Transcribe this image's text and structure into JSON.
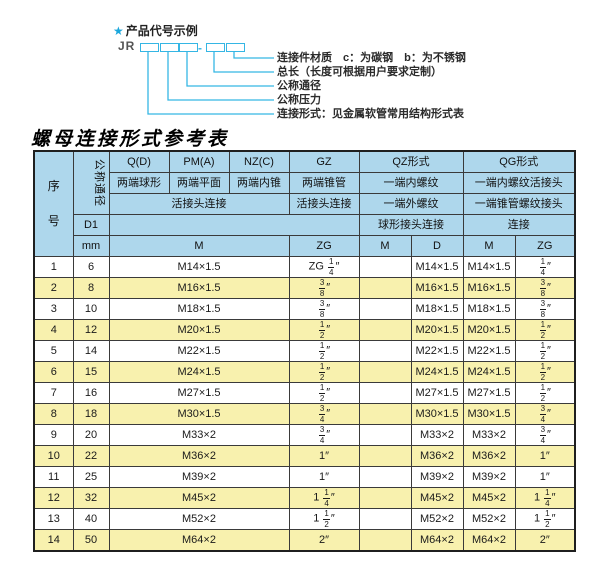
{
  "diagram": {
    "star": "★",
    "title": "产品代号示例",
    "prefix": "JR",
    "dash": "—",
    "line_color": "#35b6e4",
    "labels": [
      "连接件材质　c：为碳钢　b：为不锈钢",
      "总长（长度可根据用户要求定制）",
      "公称通径",
      "公称压力",
      "连接形式：见金属软管常用结构形式表"
    ]
  },
  "table": {
    "title": "螺母连接形式参考表",
    "header": {
      "seq_char1": "序",
      "seq_char2": "号",
      "dn": "公称通径",
      "d1": "D1",
      "mm": "mm",
      "col_q": "Q(D)",
      "col_q_sub": "两端球形",
      "col_pm": "PM(A)",
      "col_pm_sub": "两端平面",
      "col_nz": "NZ(C)",
      "col_nz_sub": "两端内锥",
      "col_gz": "GZ",
      "col_gz_sub": "两端锥管",
      "col_qz": "QZ形式",
      "col_qz_sub1": "一端内螺纹",
      "col_qz_sub2": "一端外螺纹",
      "col_qz_sub3": "球形接头连接",
      "col_qg": "QG形式",
      "col_qg_sub1": "一端内螺纹活接头",
      "col_qg_sub2": "一端锥管螺纹接头",
      "col_qg_sub3": "连接",
      "union_conn_left": "活接头连接",
      "union_conn_gz": "活接头连接",
      "m_merged": "M",
      "zg_gz": "ZG",
      "m_qz": "M",
      "d_qz": "D",
      "m_qg": "M",
      "zg_qg": "ZG"
    },
    "rows": [
      [
        "1",
        "6",
        "M14×1.5",
        "ZG 1/4″",
        "",
        "M14×1.5",
        "M14×1.5",
        "1/4″"
      ],
      [
        "2",
        "8",
        "M16×1.5",
        "3/8″",
        "",
        "M16×1.5",
        "M16×1.5",
        "3/8″"
      ],
      [
        "3",
        "10",
        "M18×1.5",
        "3/8″",
        "",
        "M18×1.5",
        "M18×1.5",
        "3/8″"
      ],
      [
        "4",
        "12",
        "M20×1.5",
        "1/2″",
        "",
        "M20×1.5",
        "M20×1.5",
        "1/2″"
      ],
      [
        "5",
        "14",
        "M22×1.5",
        "1/2″",
        "",
        "M22×1.5",
        "M22×1.5",
        "1/2″"
      ],
      [
        "6",
        "15",
        "M24×1.5",
        "1/2″",
        "",
        "M24×1.5",
        "M24×1.5",
        "1/2″"
      ],
      [
        "7",
        "16",
        "M27×1.5",
        "1/2″",
        "",
        "M27×1.5",
        "M27×1.5",
        "1/2″"
      ],
      [
        "8",
        "18",
        "M30×1.5",
        "3/4″",
        "",
        "M30×1.5",
        "M30×1.5",
        "3/4″"
      ],
      [
        "9",
        "20",
        "M33×2",
        "3/4″",
        "",
        "M33×2",
        "M33×2",
        "3/4″"
      ],
      [
        "10",
        "22",
        "M36×2",
        "1″",
        "",
        "M36×2",
        "M36×2",
        "1″"
      ],
      [
        "11",
        "25",
        "M39×2",
        "1″",
        "",
        "M39×2",
        "M39×2",
        "1″"
      ],
      [
        "12",
        "32",
        "M45×2",
        "1 1/4″",
        "",
        "M45×2",
        "M45×2",
        "1 1/4″"
      ],
      [
        "13",
        "40",
        "M52×2",
        "1 1/2″",
        "",
        "M52×2",
        "M52×2",
        "1 1/2″"
      ],
      [
        "14",
        "50",
        "M64×2",
        "2″",
        "",
        "M64×2",
        "M64×2",
        "2″"
      ]
    ],
    "colors": {
      "header_bg": "#aed7ec",
      "row_alt_bg": "#f8f1ae",
      "accent_cyan": "#35b6e4"
    }
  }
}
